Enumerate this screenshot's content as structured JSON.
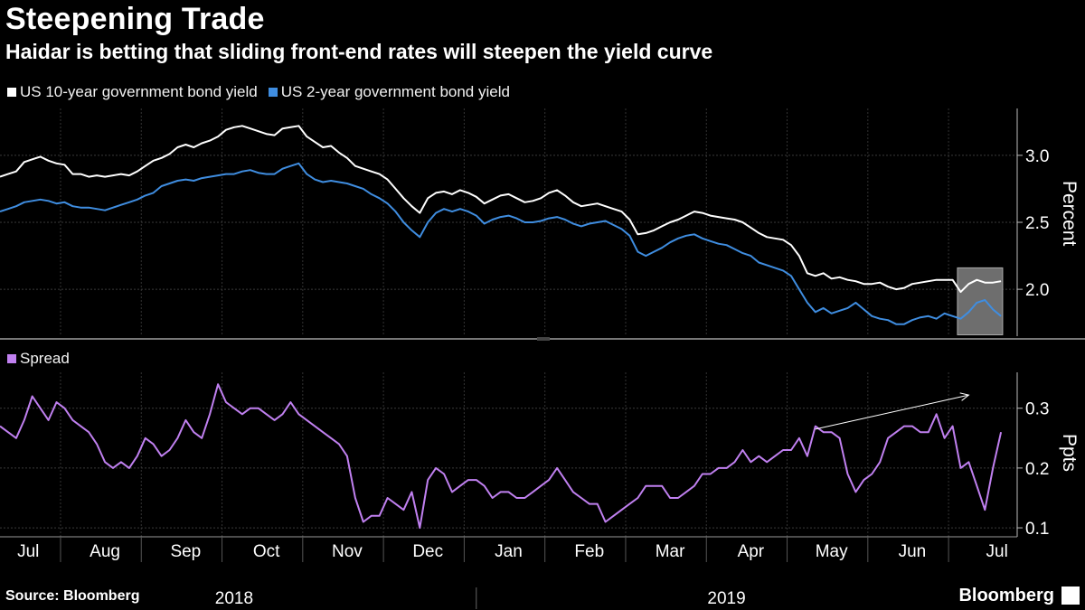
{
  "header": {
    "title": "Steepening Trade",
    "subtitle": "Haidar is betting that sliding front-end rates will steepen the yield curve"
  },
  "footer": {
    "source": "Source: Bloomberg",
    "brand": "Bloomberg"
  },
  "colors": {
    "background": "#000000",
    "ten_year": "#ffffff",
    "two_year": "#3f8de0",
    "spread": "#c080f0",
    "grid": "#3a3a3a"
  },
  "chart_data": [
    {
      "type": "line",
      "title": "",
      "ylabel": "Percent",
      "ylim": [
        1.65,
        3.35
      ],
      "yticks": [
        2.0,
        2.5,
        3.0
      ],
      "ytick_labels": [
        "2.0",
        "2.5",
        "3.0"
      ],
      "x_range": [
        0,
        12.6
      ],
      "highlight_box": {
        "x_start": 11.86,
        "x_end": 12.42,
        "y_low": 1.66,
        "y_high": 2.16
      },
      "series": [
        {
          "name": "US 10-year government bond yield",
          "color": "#ffffff",
          "x": [
            0,
            0.1,
            0.2,
            0.3,
            0.4,
            0.5,
            0.6,
            0.7,
            0.8,
            0.9,
            1.0,
            1.1,
            1.2,
            1.3,
            1.4,
            1.5,
            1.6,
            1.7,
            1.8,
            1.9,
            2.0,
            2.1,
            2.2,
            2.3,
            2.4,
            2.5,
            2.6,
            2.7,
            2.8,
            2.9,
            3.0,
            3.1,
            3.2,
            3.3,
            3.4,
            3.5,
            3.6,
            3.7,
            3.8,
            3.9,
            4.0,
            4.1,
            4.2,
            4.3,
            4.4,
            4.5,
            4.6,
            4.7,
            4.8,
            4.9,
            5.0,
            5.1,
            5.2,
            5.3,
            5.4,
            5.5,
            5.6,
            5.7,
            5.8,
            5.9,
            6.0,
            6.1,
            6.2,
            6.3,
            6.4,
            6.5,
            6.6,
            6.7,
            6.8,
            6.9,
            7.0,
            7.1,
            7.2,
            7.3,
            7.4,
            7.5,
            7.6,
            7.7,
            7.8,
            7.9,
            8.0,
            8.1,
            8.2,
            8.3,
            8.4,
            8.5,
            8.6,
            8.7,
            8.8,
            8.9,
            9.0,
            9.1,
            9.2,
            9.3,
            9.4,
            9.5,
            9.6,
            9.7,
            9.8,
            9.9,
            10.0,
            10.1,
            10.2,
            10.3,
            10.4,
            10.5,
            10.6,
            10.7,
            10.8,
            10.9,
            11.0,
            11.1,
            11.2,
            11.3,
            11.4,
            11.5,
            11.6,
            11.7,
            11.8,
            11.9,
            12.0,
            12.1,
            12.2,
            12.3,
            12.4
          ],
          "values": [
            2.84,
            2.86,
            2.88,
            2.95,
            2.97,
            2.99,
            2.96,
            2.94,
            2.93,
            2.86,
            2.86,
            2.84,
            2.85,
            2.84,
            2.85,
            2.86,
            2.85,
            2.88,
            2.92,
            2.96,
            2.98,
            3.01,
            3.06,
            3.08,
            3.06,
            3.09,
            3.11,
            3.14,
            3.19,
            3.21,
            3.22,
            3.2,
            3.18,
            3.16,
            3.15,
            3.2,
            3.21,
            3.22,
            3.14,
            3.1,
            3.06,
            3.07,
            3.02,
            2.98,
            2.92,
            2.9,
            2.88,
            2.86,
            2.82,
            2.75,
            2.68,
            2.62,
            2.57,
            2.68,
            2.72,
            2.73,
            2.71,
            2.74,
            2.72,
            2.69,
            2.64,
            2.67,
            2.7,
            2.71,
            2.68,
            2.65,
            2.66,
            2.68,
            2.72,
            2.74,
            2.7,
            2.65,
            2.62,
            2.63,
            2.64,
            2.62,
            2.6,
            2.58,
            2.52,
            2.41,
            2.42,
            2.44,
            2.47,
            2.5,
            2.52,
            2.55,
            2.58,
            2.57,
            2.55,
            2.54,
            2.53,
            2.52,
            2.5,
            2.46,
            2.42,
            2.39,
            2.38,
            2.37,
            2.33,
            2.25,
            2.12,
            2.1,
            2.12,
            2.08,
            2.09,
            2.07,
            2.06,
            2.04,
            2.04,
            2.05,
            2.02,
            2.0,
            2.01,
            2.04,
            2.05,
            2.06,
            2.07,
            2.07,
            2.07,
            1.98,
            2.04,
            2.07,
            2.05,
            2.05,
            2.06
          ]
        },
        {
          "name": "US 2-year government bond yield",
          "color": "#3f8de0",
          "x": [
            0,
            0.1,
            0.2,
            0.3,
            0.4,
            0.5,
            0.6,
            0.7,
            0.8,
            0.9,
            1.0,
            1.1,
            1.2,
            1.3,
            1.4,
            1.5,
            1.6,
            1.7,
            1.8,
            1.9,
            2.0,
            2.1,
            2.2,
            2.3,
            2.4,
            2.5,
            2.6,
            2.7,
            2.8,
            2.9,
            3.0,
            3.1,
            3.2,
            3.3,
            3.4,
            3.5,
            3.6,
            3.7,
            3.8,
            3.9,
            4.0,
            4.1,
            4.2,
            4.3,
            4.4,
            4.5,
            4.6,
            4.7,
            4.8,
            4.9,
            5.0,
            5.1,
            5.2,
            5.3,
            5.4,
            5.5,
            5.6,
            5.7,
            5.8,
            5.9,
            6.0,
            6.1,
            6.2,
            6.3,
            6.4,
            6.5,
            6.6,
            6.7,
            6.8,
            6.9,
            7.0,
            7.1,
            7.2,
            7.3,
            7.4,
            7.5,
            7.6,
            7.7,
            7.8,
            7.9,
            8.0,
            8.1,
            8.2,
            8.3,
            8.4,
            8.5,
            8.6,
            8.7,
            8.8,
            8.9,
            9.0,
            9.1,
            9.2,
            9.3,
            9.4,
            9.5,
            9.6,
            9.7,
            9.8,
            9.9,
            10.0,
            10.1,
            10.2,
            10.3,
            10.4,
            10.5,
            10.6,
            10.7,
            10.8,
            10.9,
            11.0,
            11.1,
            11.2,
            11.3,
            11.4,
            11.5,
            11.6,
            11.7,
            11.8,
            11.9,
            12.0,
            12.1,
            12.2,
            12.3,
            12.4
          ],
          "values": [
            2.58,
            2.6,
            2.62,
            2.65,
            2.66,
            2.67,
            2.66,
            2.64,
            2.65,
            2.62,
            2.61,
            2.61,
            2.6,
            2.59,
            2.61,
            2.63,
            2.65,
            2.67,
            2.7,
            2.72,
            2.77,
            2.79,
            2.81,
            2.82,
            2.81,
            2.83,
            2.84,
            2.85,
            2.86,
            2.86,
            2.88,
            2.89,
            2.87,
            2.86,
            2.86,
            2.9,
            2.92,
            2.94,
            2.86,
            2.82,
            2.8,
            2.81,
            2.8,
            2.79,
            2.77,
            2.75,
            2.71,
            2.68,
            2.64,
            2.58,
            2.5,
            2.44,
            2.39,
            2.5,
            2.57,
            2.6,
            2.58,
            2.6,
            2.58,
            2.55,
            2.49,
            2.52,
            2.54,
            2.55,
            2.53,
            2.5,
            2.5,
            2.51,
            2.53,
            2.54,
            2.52,
            2.49,
            2.47,
            2.49,
            2.5,
            2.51,
            2.48,
            2.45,
            2.4,
            2.28,
            2.25,
            2.28,
            2.31,
            2.35,
            2.38,
            2.4,
            2.41,
            2.38,
            2.36,
            2.34,
            2.33,
            2.3,
            2.27,
            2.25,
            2.2,
            2.18,
            2.16,
            2.14,
            2.1,
            2.0,
            1.9,
            1.83,
            1.86,
            1.82,
            1.84,
            1.86,
            1.9,
            1.85,
            1.8,
            1.78,
            1.77,
            1.74,
            1.74,
            1.77,
            1.79,
            1.8,
            1.78,
            1.82,
            1.8,
            1.78,
            1.83,
            1.9,
            1.92,
            1.85,
            1.8
          ]
        }
      ]
    },
    {
      "type": "line",
      "title": "",
      "ylabel": "Ppts",
      "ylim": [
        0.085,
        0.36
      ],
      "yticks": [
        0.1,
        0.2,
        0.3
      ],
      "ytick_labels": [
        "0.1",
        "0.2",
        "0.3"
      ],
      "x_range": [
        0,
        12.6
      ],
      "x_tick_labels": [
        "Jul",
        "Aug",
        "Sep",
        "Oct",
        "Nov",
        "Dec",
        "Jan",
        "Feb",
        "Mar",
        "Apr",
        "May",
        "Jun",
        "Jul"
      ],
      "x_tick_positions": [
        0.35,
        1.3,
        2.3,
        3.3,
        4.3,
        5.3,
        6.3,
        7.3,
        8.3,
        9.3,
        10.3,
        11.3,
        12.35
      ],
      "month_boundaries": [
        0.75,
        1.75,
        2.75,
        3.75,
        4.75,
        5.75,
        6.75,
        7.75,
        8.75,
        9.75,
        10.75,
        11.75
      ],
      "year_labels": [
        "2018",
        "2019"
      ],
      "year_label_positions": [
        2.9,
        9.0
      ],
      "year_divider": 5.9,
      "annotation_arrow": {
        "x_start": 10.1,
        "y_start": 0.265,
        "x_end": 12.0,
        "y_end": 0.322
      },
      "series": [
        {
          "name": "Spread",
          "color": "#c080f0",
          "x": [
            0,
            0.1,
            0.2,
            0.3,
            0.4,
            0.5,
            0.6,
            0.7,
            0.8,
            0.9,
            1.0,
            1.1,
            1.2,
            1.3,
            1.4,
            1.5,
            1.6,
            1.7,
            1.8,
            1.9,
            2.0,
            2.1,
            2.2,
            2.3,
            2.4,
            2.5,
            2.6,
            2.7,
            2.8,
            2.9,
            3.0,
            3.1,
            3.2,
            3.3,
            3.4,
            3.5,
            3.6,
            3.7,
            3.8,
            3.9,
            4.0,
            4.1,
            4.2,
            4.3,
            4.4,
            4.5,
            4.6,
            4.7,
            4.8,
            4.9,
            5.0,
            5.1,
            5.2,
            5.3,
            5.4,
            5.5,
            5.6,
            5.7,
            5.8,
            5.9,
            6.0,
            6.1,
            6.2,
            6.3,
            6.4,
            6.5,
            6.6,
            6.7,
            6.8,
            6.9,
            7.0,
            7.1,
            7.2,
            7.3,
            7.4,
            7.5,
            7.6,
            7.7,
            7.8,
            7.9,
            8.0,
            8.1,
            8.2,
            8.3,
            8.4,
            8.5,
            8.6,
            8.7,
            8.8,
            8.9,
            9.0,
            9.1,
            9.2,
            9.3,
            9.4,
            9.5,
            9.6,
            9.7,
            9.8,
            9.9,
            10.0,
            10.1,
            10.2,
            10.3,
            10.4,
            10.5,
            10.6,
            10.7,
            10.8,
            10.9,
            11.0,
            11.1,
            11.2,
            11.3,
            11.4,
            11.5,
            11.6,
            11.7,
            11.8,
            11.9,
            12.0,
            12.1,
            12.2,
            12.3,
            12.4
          ],
          "values": [
            0.27,
            0.26,
            0.25,
            0.28,
            0.32,
            0.3,
            0.28,
            0.31,
            0.3,
            0.28,
            0.27,
            0.26,
            0.24,
            0.21,
            0.2,
            0.21,
            0.2,
            0.22,
            0.25,
            0.24,
            0.22,
            0.23,
            0.25,
            0.28,
            0.26,
            0.25,
            0.29,
            0.34,
            0.31,
            0.3,
            0.29,
            0.3,
            0.3,
            0.29,
            0.28,
            0.29,
            0.31,
            0.29,
            0.28,
            0.27,
            0.26,
            0.25,
            0.24,
            0.22,
            0.15,
            0.11,
            0.12,
            0.12,
            0.15,
            0.14,
            0.13,
            0.16,
            0.1,
            0.18,
            0.2,
            0.19,
            0.16,
            0.17,
            0.18,
            0.18,
            0.17,
            0.15,
            0.16,
            0.16,
            0.15,
            0.15,
            0.16,
            0.17,
            0.18,
            0.2,
            0.18,
            0.16,
            0.15,
            0.14,
            0.14,
            0.11,
            0.12,
            0.13,
            0.14,
            0.15,
            0.17,
            0.17,
            0.17,
            0.15,
            0.15,
            0.16,
            0.17,
            0.19,
            0.19,
            0.2,
            0.2,
            0.21,
            0.23,
            0.21,
            0.22,
            0.21,
            0.22,
            0.23,
            0.23,
            0.25,
            0.22,
            0.27,
            0.26,
            0.26,
            0.25,
            0.19,
            0.16,
            0.18,
            0.19,
            0.21,
            0.25,
            0.26,
            0.27,
            0.27,
            0.26,
            0.26,
            0.29,
            0.25,
            0.27,
            0.2,
            0.21,
            0.17,
            0.13,
            0.2,
            0.26
          ]
        }
      ]
    }
  ]
}
